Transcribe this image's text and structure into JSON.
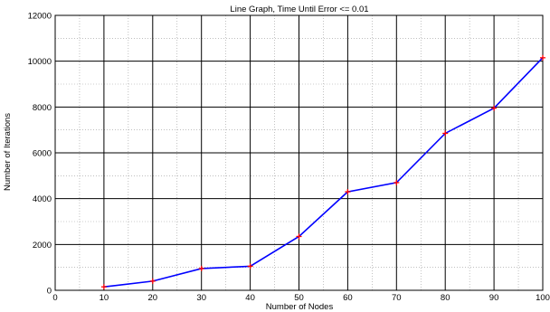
{
  "chart_data": {
    "type": "line",
    "title": "Line Graph, Time Until Error <= 0.01",
    "xlabel": "Number of Nodes",
    "ylabel": "Number of Iterations",
    "xlim": [
      0,
      100
    ],
    "ylim": [
      0,
      12000
    ],
    "xticks": [
      0,
      10,
      20,
      30,
      40,
      50,
      60,
      70,
      80,
      90,
      100
    ],
    "yticks": [
      0,
      2000,
      4000,
      6000,
      8000,
      10000,
      12000
    ],
    "grid": true,
    "series": [
      {
        "x": [
          10,
          20,
          30,
          40,
          50,
          60,
          70,
          80,
          90,
          100
        ],
        "y": [
          150,
          400,
          950,
          1050,
          2350,
          4300,
          4700,
          6850,
          7950,
          10150
        ],
        "line_color": "#0000ff",
        "marker_color": "#ff0000",
        "marker": "+"
      }
    ]
  }
}
